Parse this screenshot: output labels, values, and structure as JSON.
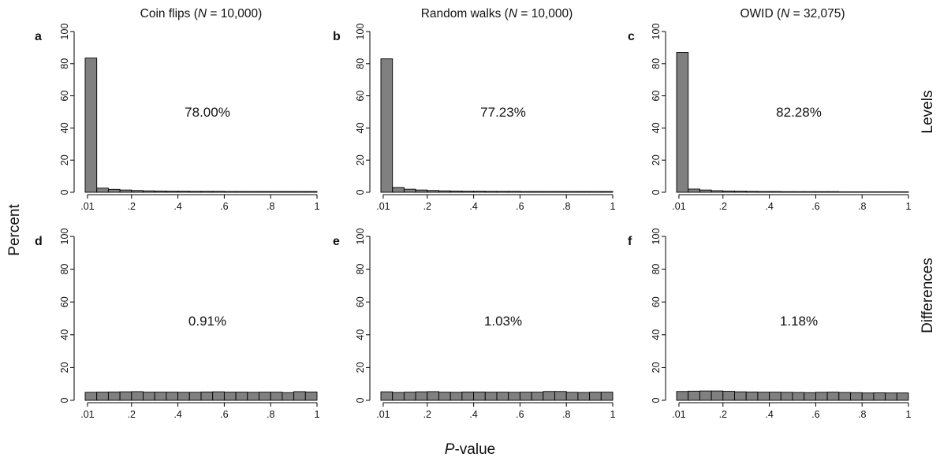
{
  "figure": {
    "y_title": "Percent",
    "x_title_italic": "P",
    "x_title_rest": "-value",
    "row_labels": [
      "Levels",
      "Differences"
    ],
    "column_titles": [
      {
        "pre": "Coin flips (",
        "n": "N",
        "rest": " = 10,000)"
      },
      {
        "pre": "Random walks (",
        "n": "N",
        "rest": " = 10,000)"
      },
      {
        "pre": "OWID (",
        "n": "N",
        "rest": " = 32,075)"
      }
    ],
    "colors": {
      "bar_fill": "#808080",
      "bar_stroke": "#000000",
      "axis": "#000000",
      "text": "#111111"
    }
  },
  "chart_data": [
    {
      "type": "bar",
      "panel": "a",
      "row": "Levels",
      "column": "Coin flips",
      "annotation": "78.00%",
      "x_ticks": [
        ".01",
        ".2",
        ".4",
        ".6",
        ".8",
        "1"
      ],
      "x_tick_values": [
        0.01,
        0.2,
        0.4,
        0.6,
        0.8,
        1
      ],
      "y_ticks": [
        "0",
        "20",
        "40",
        "60",
        "80",
        "100"
      ],
      "ylim": [
        0,
        100
      ],
      "xlim": [
        0,
        1
      ],
      "bin_width": 0.05,
      "values": [
        83.5,
        2.6,
        1.8,
        1.4,
        1.1,
        0.9,
        0.8,
        0.7,
        0.7,
        0.6,
        0.6,
        0.6,
        0.5,
        0.5,
        0.5,
        0.5,
        0.5,
        0.5,
        0.5,
        0.5
      ]
    },
    {
      "type": "bar",
      "panel": "b",
      "row": "Levels",
      "column": "Random walks",
      "annotation": "77.23%",
      "x_ticks": [
        ".01",
        ".2",
        ".4",
        ".6",
        ".8",
        "1"
      ],
      "x_tick_values": [
        0.01,
        0.2,
        0.4,
        0.6,
        0.8,
        1
      ],
      "y_ticks": [
        "0",
        "20",
        "40",
        "60",
        "80",
        "100"
      ],
      "ylim": [
        0,
        100
      ],
      "xlim": [
        0,
        1
      ],
      "bin_width": 0.05,
      "values": [
        83.0,
        3.0,
        1.9,
        1.4,
        1.1,
        0.9,
        0.8,
        0.7,
        0.7,
        0.6,
        0.6,
        0.6,
        0.5,
        0.5,
        0.5,
        0.5,
        0.5,
        0.5,
        0.5,
        0.5
      ]
    },
    {
      "type": "bar",
      "panel": "c",
      "row": "Levels",
      "column": "OWID",
      "annotation": "82.28%",
      "x_ticks": [
        ".01",
        ".2",
        ".4",
        ".6",
        ".8",
        "1"
      ],
      "x_tick_values": [
        0.01,
        0.2,
        0.4,
        0.6,
        0.8,
        1
      ],
      "y_ticks": [
        "0",
        "20",
        "40",
        "60",
        "80",
        "100"
      ],
      "ylim": [
        0,
        100
      ],
      "xlim": [
        0,
        1
      ],
      "bin_width": 0.05,
      "values": [
        87.0,
        2.0,
        1.4,
        1.0,
        0.8,
        0.7,
        0.6,
        0.5,
        0.5,
        0.4,
        0.4,
        0.4,
        0.4,
        0.4,
        0.3,
        0.3,
        0.3,
        0.3,
        0.3,
        0.3
      ]
    },
    {
      "type": "bar",
      "panel": "d",
      "row": "Differences",
      "column": "Coin flips",
      "annotation": "0.91%",
      "x_ticks": [
        ".01",
        ".2",
        ".4",
        ".6",
        ".8",
        "1"
      ],
      "x_tick_values": [
        0.01,
        0.2,
        0.4,
        0.6,
        0.8,
        1
      ],
      "y_ticks": [
        "0",
        "20",
        "40",
        "60",
        "80",
        "100"
      ],
      "ylim": [
        0,
        100
      ],
      "xlim": [
        0,
        1
      ],
      "bin_width": 0.05,
      "values": [
        4.9,
        5.0,
        5.1,
        5.2,
        5.3,
        5.0,
        5.0,
        5.0,
        4.9,
        4.9,
        5.1,
        5.2,
        5.0,
        5.0,
        4.9,
        5.0,
        5.0,
        4.7,
        5.3,
        5.1
      ]
    },
    {
      "type": "bar",
      "panel": "e",
      "row": "Differences",
      "column": "Random walks",
      "annotation": "1.03%",
      "x_ticks": [
        ".01",
        ".2",
        ".4",
        ".6",
        ".8",
        "1"
      ],
      "x_tick_values": [
        0.01,
        0.2,
        0.4,
        0.6,
        0.8,
        1
      ],
      "y_ticks": [
        "0",
        "20",
        "40",
        "60",
        "80",
        "100"
      ],
      "ylim": [
        0,
        100
      ],
      "xlim": [
        0,
        1
      ],
      "bin_width": 0.05,
      "values": [
        5.2,
        4.8,
        5.0,
        5.2,
        5.3,
        5.0,
        4.9,
        5.1,
        5.1,
        5.0,
        5.0,
        4.9,
        5.0,
        5.0,
        5.4,
        5.4,
        4.9,
        4.8,
        5.0,
        5.0
      ]
    },
    {
      "type": "bar",
      "panel": "f",
      "row": "Differences",
      "column": "OWID",
      "annotation": "1.18%",
      "x_ticks": [
        ".01",
        ".2",
        ".4",
        ".6",
        ".8",
        "1"
      ],
      "x_tick_values": [
        0.01,
        0.2,
        0.4,
        0.6,
        0.8,
        1
      ],
      "y_ticks": [
        "0",
        "20",
        "40",
        "60",
        "80",
        "100"
      ],
      "ylim": [
        0,
        100
      ],
      "xlim": [
        0,
        1
      ],
      "bin_width": 0.05,
      "values": [
        5.4,
        5.6,
        5.7,
        5.7,
        5.5,
        5.2,
        5.1,
        5.0,
        5.0,
        4.9,
        4.8,
        4.7,
        4.9,
        5.0,
        4.8,
        4.7,
        4.5,
        4.6,
        4.5,
        4.5
      ]
    }
  ]
}
